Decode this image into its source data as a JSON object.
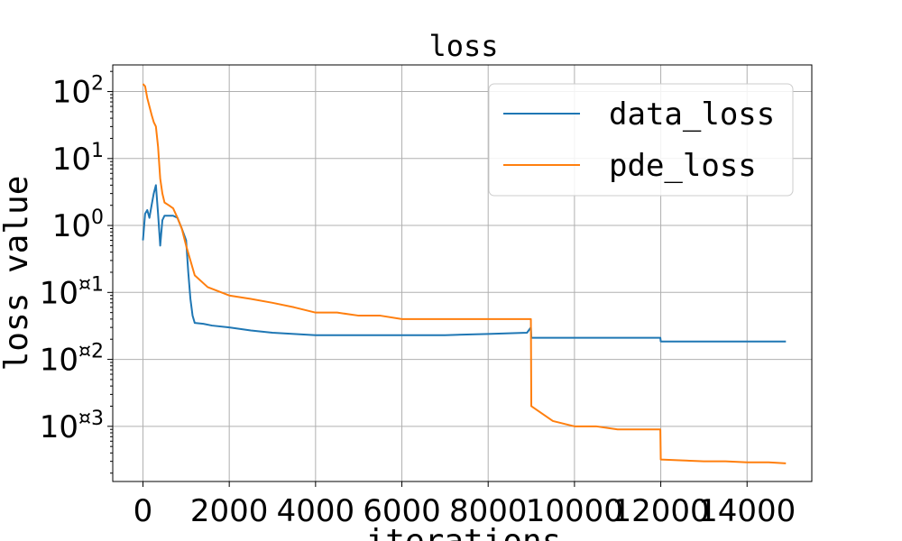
{
  "chart_data": {
    "type": "line",
    "title": "loss",
    "xlabel": "iterations",
    "ylabel": "loss value",
    "xlim": [
      -700,
      15500
    ],
    "ylim": [
      0.00015,
      250
    ],
    "yscale": "log",
    "grid": true,
    "legend_position": "top-right",
    "x_ticks": [
      0,
      2000,
      4000,
      6000,
      8000,
      10000,
      12000,
      14000
    ],
    "x_tick_labels": [
      "0",
      "2000",
      "4000",
      "6000",
      "8000",
      "10000",
      "12000",
      "14000"
    ],
    "y_ticks": [
      {
        "value": 100,
        "base": "10",
        "exp": "2"
      },
      {
        "value": 10,
        "base": "10",
        "exp": "1"
      },
      {
        "value": 1,
        "base": "10",
        "exp": "0"
      },
      {
        "value": 0.1,
        "base": "10",
        "exp": "¤1"
      },
      {
        "value": 0.01,
        "base": "10",
        "exp": "¤2"
      },
      {
        "value": 0.001,
        "base": "10",
        "exp": "¤3"
      }
    ],
    "series": [
      {
        "name": "data_loss",
        "color": "#1f77b4",
        "x": [
          0,
          50,
          100,
          150,
          200,
          250,
          300,
          350,
          400,
          450,
          500,
          600,
          700,
          800,
          900,
          1000,
          1050,
          1100,
          1150,
          1200,
          1400,
          1600,
          2000,
          2500,
          3000,
          3500,
          4000,
          5000,
          6000,
          7000,
          8000,
          8900,
          8990,
          9000,
          9500,
          10000,
          10500,
          11000,
          11500,
          11990,
          12000,
          13000,
          14000,
          14900
        ],
        "y": [
          0.6,
          1.5,
          1.7,
          1.3,
          2.0,
          3.0,
          4.0,
          1.5,
          0.5,
          1.2,
          1.4,
          1.4,
          1.4,
          1.3,
          0.9,
          0.6,
          0.2,
          0.08,
          0.045,
          0.035,
          0.034,
          0.032,
          0.03,
          0.027,
          0.025,
          0.024,
          0.023,
          0.023,
          0.023,
          0.023,
          0.024,
          0.025,
          0.03,
          0.021,
          0.021,
          0.021,
          0.021,
          0.021,
          0.021,
          0.021,
          0.0185,
          0.0185,
          0.0185,
          0.0185
        ]
      },
      {
        "name": "pde_loss",
        "color": "#ff7f0e",
        "x": [
          0,
          50,
          100,
          150,
          200,
          250,
          300,
          350,
          400,
          450,
          500,
          600,
          700,
          800,
          900,
          1000,
          1100,
          1200,
          1500,
          2000,
          2500,
          3000,
          3500,
          4000,
          4500,
          5000,
          5500,
          6000,
          6500,
          7000,
          7500,
          8000,
          8500,
          8990,
          9000,
          9500,
          10000,
          10500,
          11000,
          11500,
          11990,
          12000,
          12500,
          13000,
          13500,
          14000,
          14500,
          14900
        ],
        "y": [
          130,
          120,
          80,
          60,
          45,
          35,
          30,
          15,
          5,
          3,
          2.2,
          2.0,
          1.8,
          1.3,
          0.9,
          0.5,
          0.3,
          0.18,
          0.12,
          0.09,
          0.08,
          0.07,
          0.06,
          0.05,
          0.05,
          0.045,
          0.045,
          0.04,
          0.04,
          0.04,
          0.04,
          0.04,
          0.04,
          0.04,
          0.002,
          0.0012,
          0.001,
          0.001,
          0.0009,
          0.0009,
          0.0009,
          0.00032,
          0.00031,
          0.0003,
          0.0003,
          0.00029,
          0.00029,
          0.00028
        ]
      }
    ]
  }
}
